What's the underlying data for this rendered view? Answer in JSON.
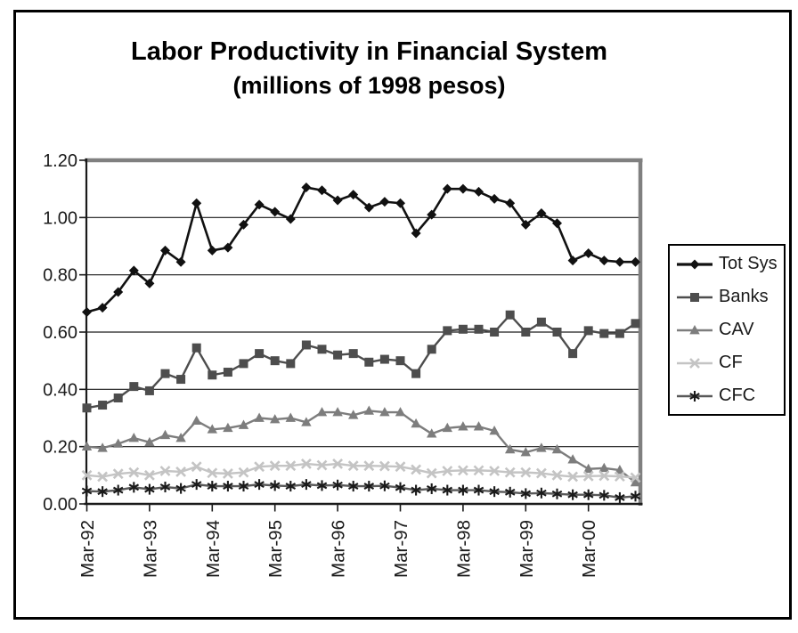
{
  "figure": {
    "background": "#ffffff",
    "frame_color": "#000000",
    "plot_border_gray": "#808080",
    "axis_color": "#1a1a1a",
    "gridline_color": "#1a1a1a"
  },
  "chart_data": {
    "type": "line",
    "title": "Labor Productivity in Financial System",
    "subtitle": "(millions of 1998 pesos)",
    "ylim": [
      0,
      1.2
    ],
    "grid": true,
    "legend_position": "right",
    "y_tick_labels": [
      "0.00",
      "0.20",
      "0.40",
      "0.60",
      "0.80",
      "1.00",
      "1.20"
    ],
    "y_tick_values": [
      0,
      0.2,
      0.4,
      0.6,
      0.8,
      1.0,
      1.2
    ],
    "x_tick_labels": [
      "Mar-92",
      "Mar-93",
      "Mar-94",
      "Mar-95",
      "Mar-96",
      "Mar-97",
      "Mar-98",
      "Mar-99",
      "Mar-00"
    ],
    "x_tick_positions": [
      0,
      4,
      8,
      12,
      16,
      20,
      24,
      28,
      32
    ],
    "n_points": 36,
    "series": [
      {
        "name": "Tot Sys",
        "marker": "diamond",
        "color": "#111111",
        "values": [
          0.67,
          0.685,
          0.74,
          0.815,
          0.77,
          0.885,
          0.845,
          1.05,
          0.885,
          0.895,
          0.975,
          1.045,
          1.02,
          0.995,
          1.105,
          1.095,
          1.06,
          1.08,
          1.035,
          1.055,
          1.05,
          0.945,
          1.01,
          1.1,
          1.1,
          1.09,
          1.065,
          1.05,
          0.975,
          1.015,
          0.98,
          0.85,
          0.875,
          0.85,
          0.845,
          0.845
        ]
      },
      {
        "name": "Banks",
        "marker": "square",
        "color": "#4d4d4d",
        "values": [
          0.335,
          0.345,
          0.37,
          0.41,
          0.395,
          0.455,
          0.435,
          0.545,
          0.45,
          0.46,
          0.49,
          0.525,
          0.5,
          0.49,
          0.555,
          0.54,
          0.52,
          0.525,
          0.495,
          0.505,
          0.5,
          0.455,
          0.54,
          0.605,
          0.61,
          0.61,
          0.6,
          0.66,
          0.6,
          0.635,
          0.6,
          0.525,
          0.605,
          0.595,
          0.595,
          0.63
        ]
      },
      {
        "name": "CAV",
        "marker": "triangle",
        "color": "#7d7d7d",
        "values": [
          0.2,
          0.195,
          0.21,
          0.23,
          0.215,
          0.24,
          0.23,
          0.29,
          0.26,
          0.265,
          0.275,
          0.3,
          0.295,
          0.3,
          0.285,
          0.32,
          0.32,
          0.31,
          0.325,
          0.32,
          0.32,
          0.28,
          0.245,
          0.265,
          0.27,
          0.27,
          0.255,
          0.19,
          0.18,
          0.195,
          0.19,
          0.155,
          0.122,
          0.125,
          0.118,
          0.075
        ]
      },
      {
        "name": "CF",
        "marker": "x",
        "color": "#c4c4c4",
        "values": [
          0.1,
          0.095,
          0.105,
          0.11,
          0.1,
          0.115,
          0.112,
          0.13,
          0.108,
          0.106,
          0.11,
          0.13,
          0.133,
          0.133,
          0.14,
          0.135,
          0.14,
          0.133,
          0.133,
          0.132,
          0.13,
          0.12,
          0.107,
          0.115,
          0.117,
          0.117,
          0.115,
          0.11,
          0.11,
          0.107,
          0.1,
          0.095,
          0.097,
          0.098,
          0.096,
          0.092
        ]
      },
      {
        "name": "CFC",
        "marker": "asterisk",
        "color": "#595959",
        "marker_color": "#1a1a1a",
        "values": [
          0.045,
          0.043,
          0.048,
          0.058,
          0.051,
          0.059,
          0.054,
          0.068,
          0.062,
          0.062,
          0.062,
          0.068,
          0.064,
          0.062,
          0.068,
          0.064,
          0.066,
          0.062,
          0.062,
          0.063,
          0.057,
          0.048,
          0.053,
          0.048,
          0.048,
          0.048,
          0.043,
          0.041,
          0.036,
          0.038,
          0.035,
          0.032,
          0.032,
          0.03,
          0.022,
          0.027
        ]
      }
    ]
  }
}
